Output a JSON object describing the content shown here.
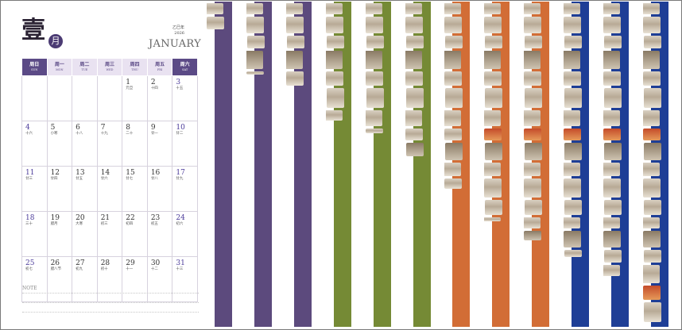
{
  "calendar": {
    "big_char": "壹",
    "month_badge": "月",
    "year_line1": "乙巳年",
    "year_line2": "2026",
    "month_en": "JANUARY",
    "weekdays": [
      {
        "zh": "周日",
        "en": "SUN",
        "weekend": true
      },
      {
        "zh": "周一",
        "en": "MON",
        "weekend": false
      },
      {
        "zh": "周二",
        "en": "TUE",
        "weekend": false
      },
      {
        "zh": "周三",
        "en": "WED",
        "weekend": false
      },
      {
        "zh": "周四",
        "en": "THU",
        "weekend": false
      },
      {
        "zh": "周五",
        "en": "FRI",
        "weekend": false
      },
      {
        "zh": "周六",
        "en": "SAT",
        "weekend": true
      }
    ],
    "weeks": [
      [
        null,
        null,
        null,
        null,
        {
          "d": "1",
          "l": "元旦"
        },
        {
          "d": "2",
          "l": "十四"
        },
        {
          "d": "3",
          "l": "十五"
        }
      ],
      [
        {
          "d": "4",
          "l": "十六"
        },
        {
          "d": "5",
          "l": "小寒"
        },
        {
          "d": "6",
          "l": "十八"
        },
        {
          "d": "7",
          "l": "十九"
        },
        {
          "d": "8",
          "l": "二十"
        },
        {
          "d": "9",
          "l": "廿一"
        },
        {
          "d": "10",
          "l": "廿二"
        }
      ],
      [
        {
          "d": "11",
          "l": "廿三"
        },
        {
          "d": "12",
          "l": "廿四"
        },
        {
          "d": "13",
          "l": "廿五"
        },
        {
          "d": "14",
          "l": "廿六"
        },
        {
          "d": "15",
          "l": "廿七"
        },
        {
          "d": "16",
          "l": "廿八"
        },
        {
          "d": "17",
          "l": "廿九"
        }
      ],
      [
        {
          "d": "18",
          "l": "三十"
        },
        {
          "d": "19",
          "l": "腊月"
        },
        {
          "d": "20",
          "l": "大寒"
        },
        {
          "d": "21",
          "l": "初三"
        },
        {
          "d": "22",
          "l": "初四"
        },
        {
          "d": "23",
          "l": "初五"
        },
        {
          "d": "24",
          "l": "初六"
        }
      ],
      [
        {
          "d": "25",
          "l": "初七"
        },
        {
          "d": "26",
          "l": "腊八节"
        },
        {
          "d": "27",
          "l": "初九"
        },
        {
          "d": "28",
          "l": "初十"
        },
        {
          "d": "29",
          "l": "十一"
        },
        {
          "d": "30",
          "l": "十二"
        },
        {
          "d": "31",
          "l": "十三"
        }
      ]
    ],
    "note_label": "NOTE"
  },
  "colors": {
    "purple": "#5c4a7d",
    "green": "#758a35",
    "orange": "#d26d36",
    "blue": "#1e3e96"
  },
  "tabs": [
    {
      "color": "purple",
      "bar_fraction": 1.0,
      "art_fraction": 0.08
    },
    {
      "color": "purple",
      "bar_fraction": 1.0,
      "art_fraction": 0.22
    },
    {
      "color": "purple",
      "bar_fraction": 1.0,
      "art_fraction": 0.26
    },
    {
      "color": "green",
      "bar_fraction": 1.0,
      "art_fraction": 0.36
    },
    {
      "color": "green",
      "bar_fraction": 1.0,
      "art_fraction": 0.4
    },
    {
      "color": "green",
      "bar_fraction": 1.0,
      "art_fraction": 0.47
    },
    {
      "color": "orange",
      "bar_fraction": 1.0,
      "art_fraction": 0.57
    },
    {
      "color": "orange",
      "bar_fraction": 1.0,
      "art_fraction": 0.67
    },
    {
      "color": "orange",
      "bar_fraction": 1.0,
      "art_fraction": 0.73
    },
    {
      "color": "blue",
      "bar_fraction": 1.0,
      "art_fraction": 0.78
    },
    {
      "color": "blue",
      "bar_fraction": 1.0,
      "art_fraction": 0.84
    },
    {
      "color": "blue",
      "bar_fraction": 1.0,
      "art_fraction": 0.99
    }
  ]
}
